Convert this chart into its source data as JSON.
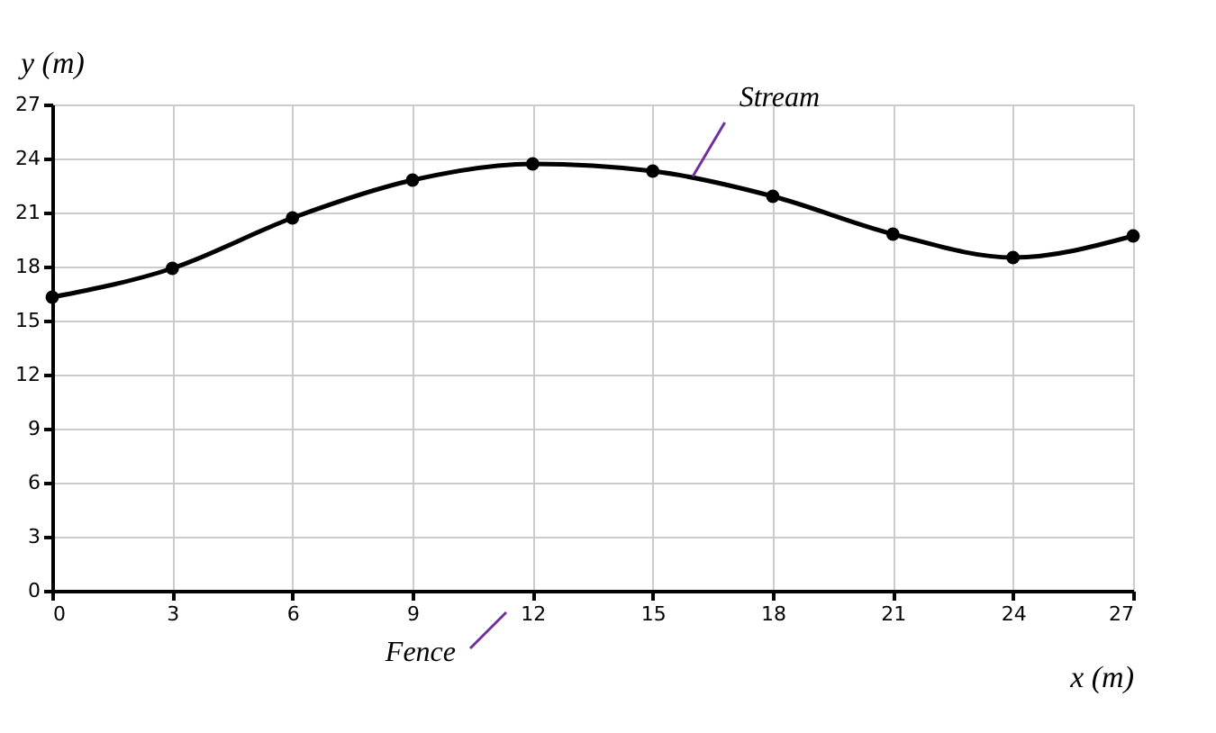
{
  "chart_data": {
    "type": "line",
    "xlabel": "x (m)",
    "ylabel": "y (m)",
    "x": [
      0,
      3,
      6,
      9,
      12,
      15,
      18,
      21,
      24,
      27
    ],
    "series": [
      {
        "color": "#000000",
        "values": [
          16.3,
          17.9,
          20.7,
          22.8,
          23.7,
          23.3,
          21.9,
          19.8,
          18.5,
          19.7
        ]
      }
    ],
    "xlim": [
      0,
      27
    ],
    "xticks": [
      0,
      3,
      6,
      9,
      12,
      15,
      18,
      21,
      24,
      27
    ],
    "ylim": [
      0,
      27
    ],
    "yticks": [
      0,
      3,
      6,
      9,
      12,
      15,
      18,
      21,
      24,
      27
    ],
    "grid": true,
    "marker": "circle",
    "line_style": "solid",
    "annotations": [
      {
        "text": "Stream",
        "x": 16,
        "y": 23
      },
      "Fence"
    ]
  }
}
